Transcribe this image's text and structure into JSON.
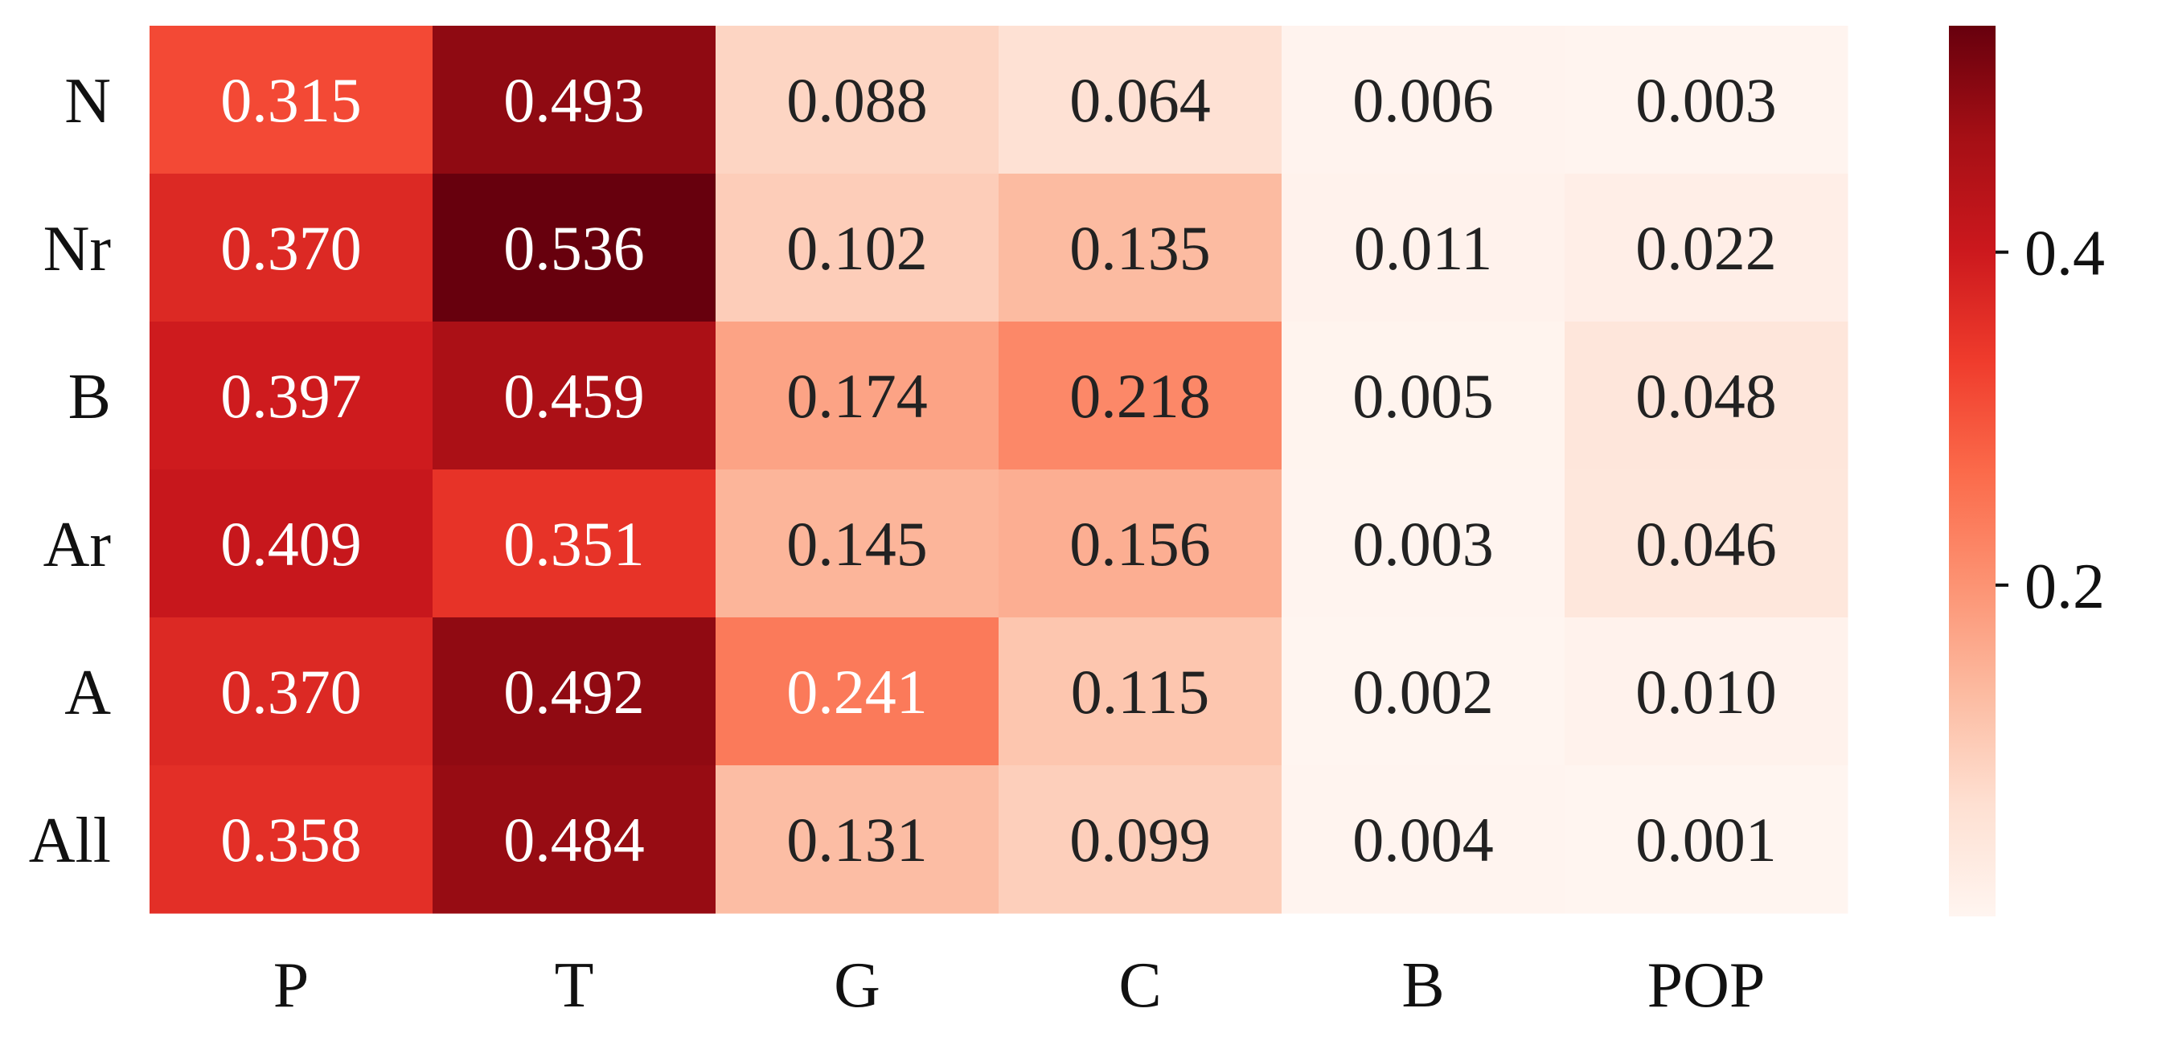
{
  "chart_data": {
    "type": "heatmap",
    "title": "",
    "xlabel": "",
    "ylabel": "",
    "columns": [
      "P",
      "T",
      "G",
      "C",
      "B",
      "POP"
    ],
    "rows": [
      "N",
      "Nr",
      "B",
      "Ar",
      "A",
      "All"
    ],
    "values": [
      [
        0.315,
        0.493,
        0.088,
        0.064,
        0.006,
        0.003
      ],
      [
        0.37,
        0.536,
        0.102,
        0.135,
        0.011,
        0.022
      ],
      [
        0.397,
        0.459,
        0.174,
        0.218,
        0.005,
        0.048
      ],
      [
        0.409,
        0.351,
        0.145,
        0.156,
        0.003,
        0.046
      ],
      [
        0.37,
        0.492,
        0.241,
        0.115,
        0.002,
        0.01
      ],
      [
        0.358,
        0.484,
        0.131,
        0.099,
        0.004,
        0.001
      ]
    ],
    "labels": [
      [
        "0.315",
        "0.493",
        "0.088",
        "0.064",
        "0.006",
        "0.003"
      ],
      [
        "0.370",
        "0.536",
        "0.102",
        "0.135",
        "0.011",
        "0.022"
      ],
      [
        "0.397",
        "0.459",
        "0.174",
        "0.218",
        "0.005",
        "0.048"
      ],
      [
        "0.409",
        "0.351",
        "0.145",
        "0.156",
        "0.003",
        "0.046"
      ],
      [
        "0.370",
        "0.492",
        "0.241",
        "0.115",
        "0.002",
        "0.010"
      ],
      [
        "0.358",
        "0.484",
        "0.131",
        "0.099",
        "0.004",
        "0.001"
      ]
    ],
    "colorscale": "Reds",
    "colorbar": {
      "range": [
        0.001,
        0.536
      ],
      "ticks": [
        0.2,
        0.4
      ],
      "tick_labels": [
        "0.2",
        "0.4"
      ],
      "position": "right"
    },
    "text_color_light": "#ffffff",
    "text_color_dark": "#222222",
    "grid": false
  }
}
